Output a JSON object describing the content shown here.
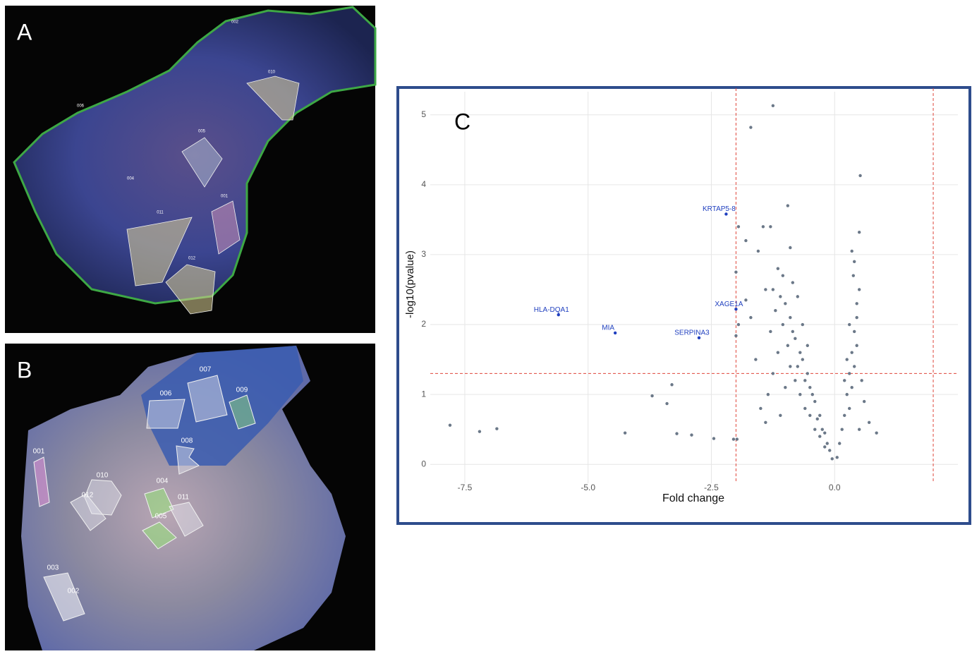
{
  "panels": [
    {
      "label": "A",
      "rois": [
        "002",
        "010",
        "006",
        "005",
        "004",
        "011",
        "001",
        "012"
      ]
    },
    {
      "label": "B",
      "rois": [
        "007",
        "006",
        "009",
        "008",
        "001",
        "010",
        "012",
        "004",
        "011",
        "005",
        "003",
        "002"
      ]
    }
  ],
  "chart_data": {
    "type": "scatter",
    "label": "C",
    "x_label": "Fold change",
    "y_label": "-log10(pvalue)",
    "xlim": [
      -8.2,
      2.5
    ],
    "ylim": [
      -0.27,
      5.33
    ],
    "xticks": [
      -7.5,
      {
        "value": -5.0,
        "label": "-5.0"
      },
      -2.5,
      {
        "value": 0.0,
        "label": "0.0"
      }
    ],
    "yticks": [
      0,
      1,
      2,
      3,
      4,
      5
    ],
    "grid": true,
    "color": "#6b7888",
    "threshold_color": "#e0453a",
    "vlines": [
      -2,
      2
    ],
    "hlines": [
      1.3
    ],
    "x": [
      -1.25,
      -1.7,
      0.52,
      -0.95,
      -1.95,
      -1.45,
      -1.3,
      0.5,
      -1.8,
      -1.55,
      -0.9,
      -2.0,
      0.35,
      -7.8,
      -7.2,
      -6.85,
      -4.25,
      -3.7,
      -3.4,
      -3.3,
      -3.2,
      -2.9,
      -2.45,
      -2.05,
      -1.98,
      -2.0,
      -1.95,
      -0.05,
      -0.1,
      -0.15,
      -0.2,
      -0.25,
      -0.3,
      -0.35,
      -0.4,
      -0.45,
      -0.5,
      -0.55,
      -0.6,
      -0.65,
      -0.7,
      -0.75,
      -0.8,
      -0.85,
      -0.9,
      -0.95,
      -1.0,
      -1.05,
      -1.1,
      -1.15,
      -1.2,
      -1.25,
      -1.3,
      -1.35,
      -1.4,
      -1.5,
      -1.6,
      -1.7,
      -1.8,
      -0.5,
      -0.6,
      -0.7,
      -0.8,
      -0.9,
      -1.0,
      -0.4,
      -0.3,
      -0.2,
      -0.65,
      -0.75,
      -0.85,
      -1.05,
      -0.55,
      -1.15,
      -1.25,
      -1.4,
      -1.1,
      0.05,
      0.1,
      0.15,
      0.2,
      0.25,
      0.3,
      0.35,
      0.4,
      0.45,
      0.5,
      0.3,
      0.35,
      0.4,
      0.45,
      0.55,
      0.6,
      0.7,
      0.85,
      0.5,
      0.4,
      0.45,
      0.25,
      0.3,
      0.38,
      0.2
    ],
    "y": [
      5.13,
      4.82,
      4.13,
      3.7,
      3.4,
      3.4,
      3.4,
      3.32,
      3.2,
      3.05,
      3.1,
      2.75,
      3.05,
      0.56,
      0.47,
      0.51,
      0.45,
      0.98,
      0.87,
      1.14,
      0.44,
      0.42,
      0.37,
      0.36,
      0.36,
      1.84,
      2.0,
      0.08,
      0.2,
      0.3,
      0.45,
      0.5,
      0.7,
      0.65,
      0.9,
      1.0,
      1.1,
      1.3,
      1.2,
      1.5,
      1.6,
      1.4,
      1.8,
      1.9,
      2.1,
      1.7,
      2.3,
      2.0,
      2.4,
      1.6,
      2.2,
      1.3,
      1.9,
      1.0,
      2.5,
      0.8,
      1.5,
      2.1,
      2.35,
      0.7,
      0.8,
      1.0,
      1.2,
      1.4,
      1.1,
      0.5,
      0.4,
      0.25,
      2.0,
      2.4,
      2.6,
      2.7,
      1.7,
      2.8,
      2.5,
      0.6,
      0.7,
      0.1,
      0.3,
      0.5,
      0.7,
      1.0,
      1.3,
      1.6,
      1.9,
      2.1,
      2.5,
      0.8,
      1.1,
      1.4,
      1.7,
      1.2,
      0.9,
      0.6,
      0.45,
      0.5,
      2.9,
      2.3,
      1.5,
      2.0,
      2.7,
      1.2
    ],
    "labeled_points": {
      "color": "#1f3fbf",
      "names": [
        "KRTAP5-8",
        "XAGE1A",
        "HLA-DQA1",
        "MIA",
        "SERPINA3"
      ],
      "x": [
        -2.2,
        -2.0,
        -5.6,
        -4.45,
        -2.75
      ],
      "y": [
        3.58,
        2.22,
        2.14,
        1.88,
        1.81
      ]
    }
  }
}
